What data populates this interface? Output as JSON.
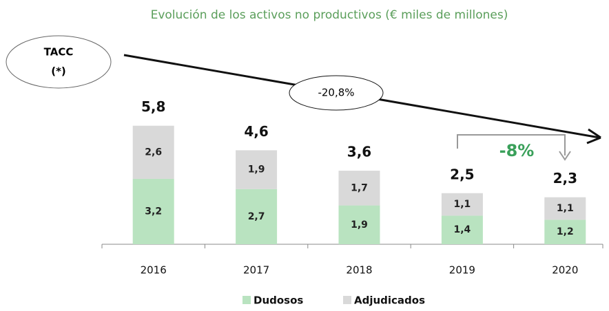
{
  "chart_data": {
    "type": "bar",
    "stacked": true,
    "title": "Evolución de los activos no productivos (€ miles de millones)",
    "categories": [
      "2016",
      "2017",
      "2018",
      "2019",
      "2020"
    ],
    "series": [
      {
        "name": "Dudosos",
        "color": "#b9e3c0",
        "values": [
          3.2,
          2.7,
          1.9,
          1.4,
          1.2
        ],
        "value_labels": [
          "3,2",
          "2,7",
          "1,9",
          "1,4",
          "1,2"
        ]
      },
      {
        "name": "Adjudicados",
        "color": "#d9d9d9",
        "values": [
          2.6,
          1.9,
          1.7,
          1.1,
          1.1
        ],
        "value_labels": [
          "2,6",
          "1,9",
          "1,7",
          "1,1",
          "1,1"
        ]
      }
    ],
    "totals": {
      "values": [
        5.8,
        4.6,
        3.6,
        2.5,
        2.3
      ],
      "value_labels": [
        "5,8",
        "4,6",
        "3,6",
        "2,5",
        "2,3"
      ]
    },
    "annotations": {
      "tacc": [
        "TACC",
        "(*)"
      ],
      "cagr": "-20,8%",
      "change": "-8%"
    }
  }
}
